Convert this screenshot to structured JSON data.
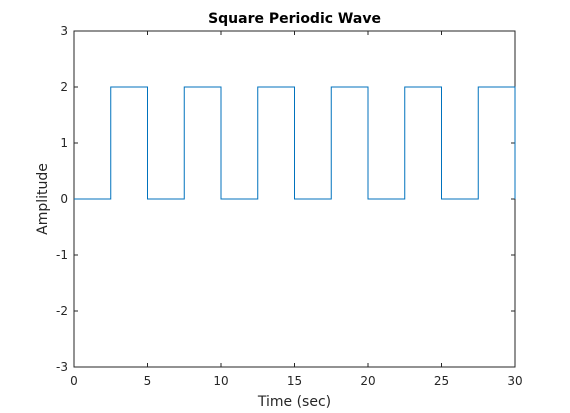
{
  "chart_data": {
    "type": "line",
    "title": "Square Periodic Wave",
    "xlabel": "Time (sec)",
    "ylabel": "Amplitude",
    "xlim": [
      0,
      30
    ],
    "ylim": [
      -3,
      3
    ],
    "xticks": [
      "0",
      "5",
      "10",
      "15",
      "20",
      "25",
      "30"
    ],
    "yticks": [
      "-3",
      "-2",
      "-1",
      "0",
      "1",
      "2",
      "3"
    ],
    "grid": false,
    "series": [
      {
        "color": "#0072BD",
        "x": [
          0,
          2.5,
          2.5,
          5,
          5,
          7.5,
          7.5,
          10,
          10,
          12.5,
          12.5,
          15,
          15,
          17.5,
          17.5,
          20,
          20,
          22.5,
          22.5,
          25,
          25,
          27.5,
          27.5,
          30,
          30
        ],
        "y": [
          0,
          0,
          2,
          2,
          0,
          0,
          2,
          2,
          0,
          0,
          2,
          2,
          0,
          0,
          2,
          2,
          0,
          0,
          2,
          2,
          0,
          0,
          2,
          2,
          0
        ]
      }
    ]
  }
}
